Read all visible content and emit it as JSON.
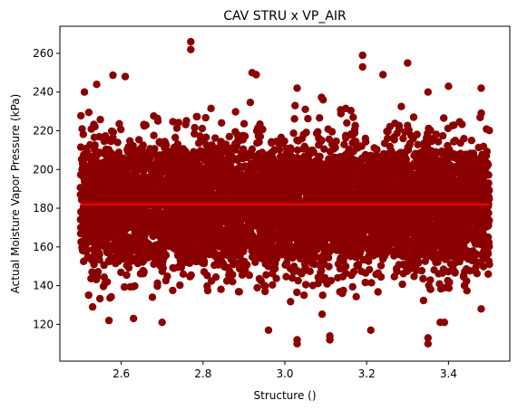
{
  "chart_data": {
    "type": "scatter",
    "title": "CAV STRU x VP_AIR",
    "xlabel": "Structure ()",
    "ylabel": "Actual Moisture Vapor Pressure (kPa)",
    "xlim": [
      2.45,
      3.55
    ],
    "ylim": [
      101,
      274
    ],
    "xticks": [
      2.6,
      2.8,
      3.0,
      3.2,
      3.4
    ],
    "xtick_labels": [
      "2.6",
      "2.8",
      "3.0",
      "3.2",
      "3.4"
    ],
    "yticks": [
      120,
      140,
      160,
      180,
      200,
      220,
      240,
      260
    ],
    "ytick_labels": [
      "120",
      "140",
      "160",
      "180",
      "200",
      "220",
      "240",
      "260"
    ],
    "grid": false,
    "colors": {
      "points": "#8b0000",
      "fit_line": "#ff0000"
    },
    "fit_line": {
      "x": [
        2.5,
        3.5
      ],
      "y": [
        182,
        182
      ]
    },
    "point_cloud": {
      "x_range": [
        2.5,
        3.5
      ],
      "y_center": 182,
      "y_dense_range": [
        142,
        222
      ],
      "y_observed_range": [
        109,
        266
      ]
    },
    "outliers": [
      {
        "x": 2.77,
        "y": 266
      },
      {
        "x": 2.77,
        "y": 262
      },
      {
        "x": 3.19,
        "y": 259
      },
      {
        "x": 3.19,
        "y": 253
      },
      {
        "x": 3.3,
        "y": 255
      },
      {
        "x": 2.92,
        "y": 250
      },
      {
        "x": 2.93,
        "y": 249
      },
      {
        "x": 3.24,
        "y": 249
      },
      {
        "x": 2.61,
        "y": 248
      },
      {
        "x": 2.54,
        "y": 244
      },
      {
        "x": 3.4,
        "y": 243
      },
      {
        "x": 3.48,
        "y": 242
      },
      {
        "x": 3.03,
        "y": 242
      },
      {
        "x": 3.35,
        "y": 240
      },
      {
        "x": 2.51,
        "y": 240
      },
      {
        "x": 3.03,
        "y": 112
      },
      {
        "x": 3.03,
        "y": 110
      },
      {
        "x": 3.11,
        "y": 114
      },
      {
        "x": 3.11,
        "y": 112
      },
      {
        "x": 3.35,
        "y": 113
      },
      {
        "x": 3.35,
        "y": 110
      },
      {
        "x": 2.96,
        "y": 117
      },
      {
        "x": 3.21,
        "y": 117
      },
      {
        "x": 2.7,
        "y": 121
      },
      {
        "x": 3.38,
        "y": 121
      },
      {
        "x": 3.39,
        "y": 121
      },
      {
        "x": 2.57,
        "y": 122
      },
      {
        "x": 2.63,
        "y": 123
      },
      {
        "x": 3.48,
        "y": 128
      },
      {
        "x": 2.53,
        "y": 129
      }
    ]
  }
}
